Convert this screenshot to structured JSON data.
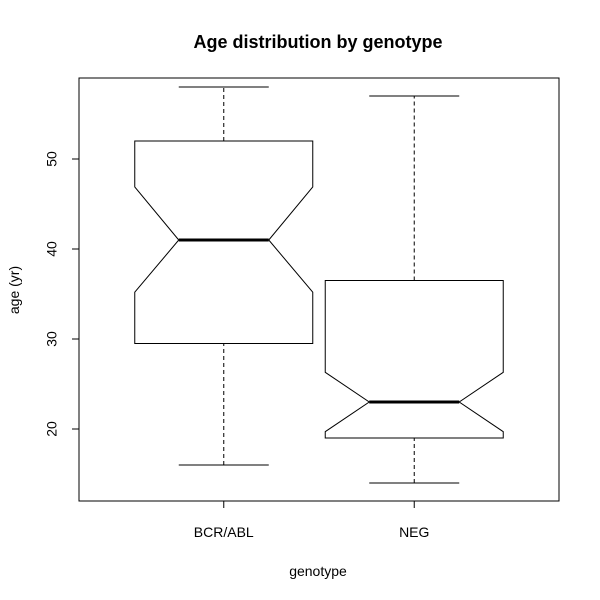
{
  "chart_data": {
    "type": "boxplot",
    "title": "Age distribution by genotype",
    "xlabel": "genotype",
    "ylabel": "age (yr)",
    "ylim": [
      12,
      59
    ],
    "yticks": [
      20,
      30,
      40,
      50
    ],
    "notched": true,
    "categories": [
      "BCR/ABL",
      "NEG"
    ],
    "boxes": [
      {
        "category": "BCR/ABL",
        "whisker_low": 16,
        "q1": 29.5,
        "median": 41,
        "q3": 52,
        "whisker_high": 58,
        "notch_low": 35.2,
        "notch_high": 46.9
      },
      {
        "category": "NEG",
        "whisker_low": 14,
        "q1": 19,
        "median": 23,
        "q3": 36.5,
        "whisker_high": 57,
        "notch_low": 19.7,
        "notch_high": 26.3
      }
    ],
    "colors": {
      "box_fill": "#ffffff",
      "stroke": "#000000"
    }
  }
}
